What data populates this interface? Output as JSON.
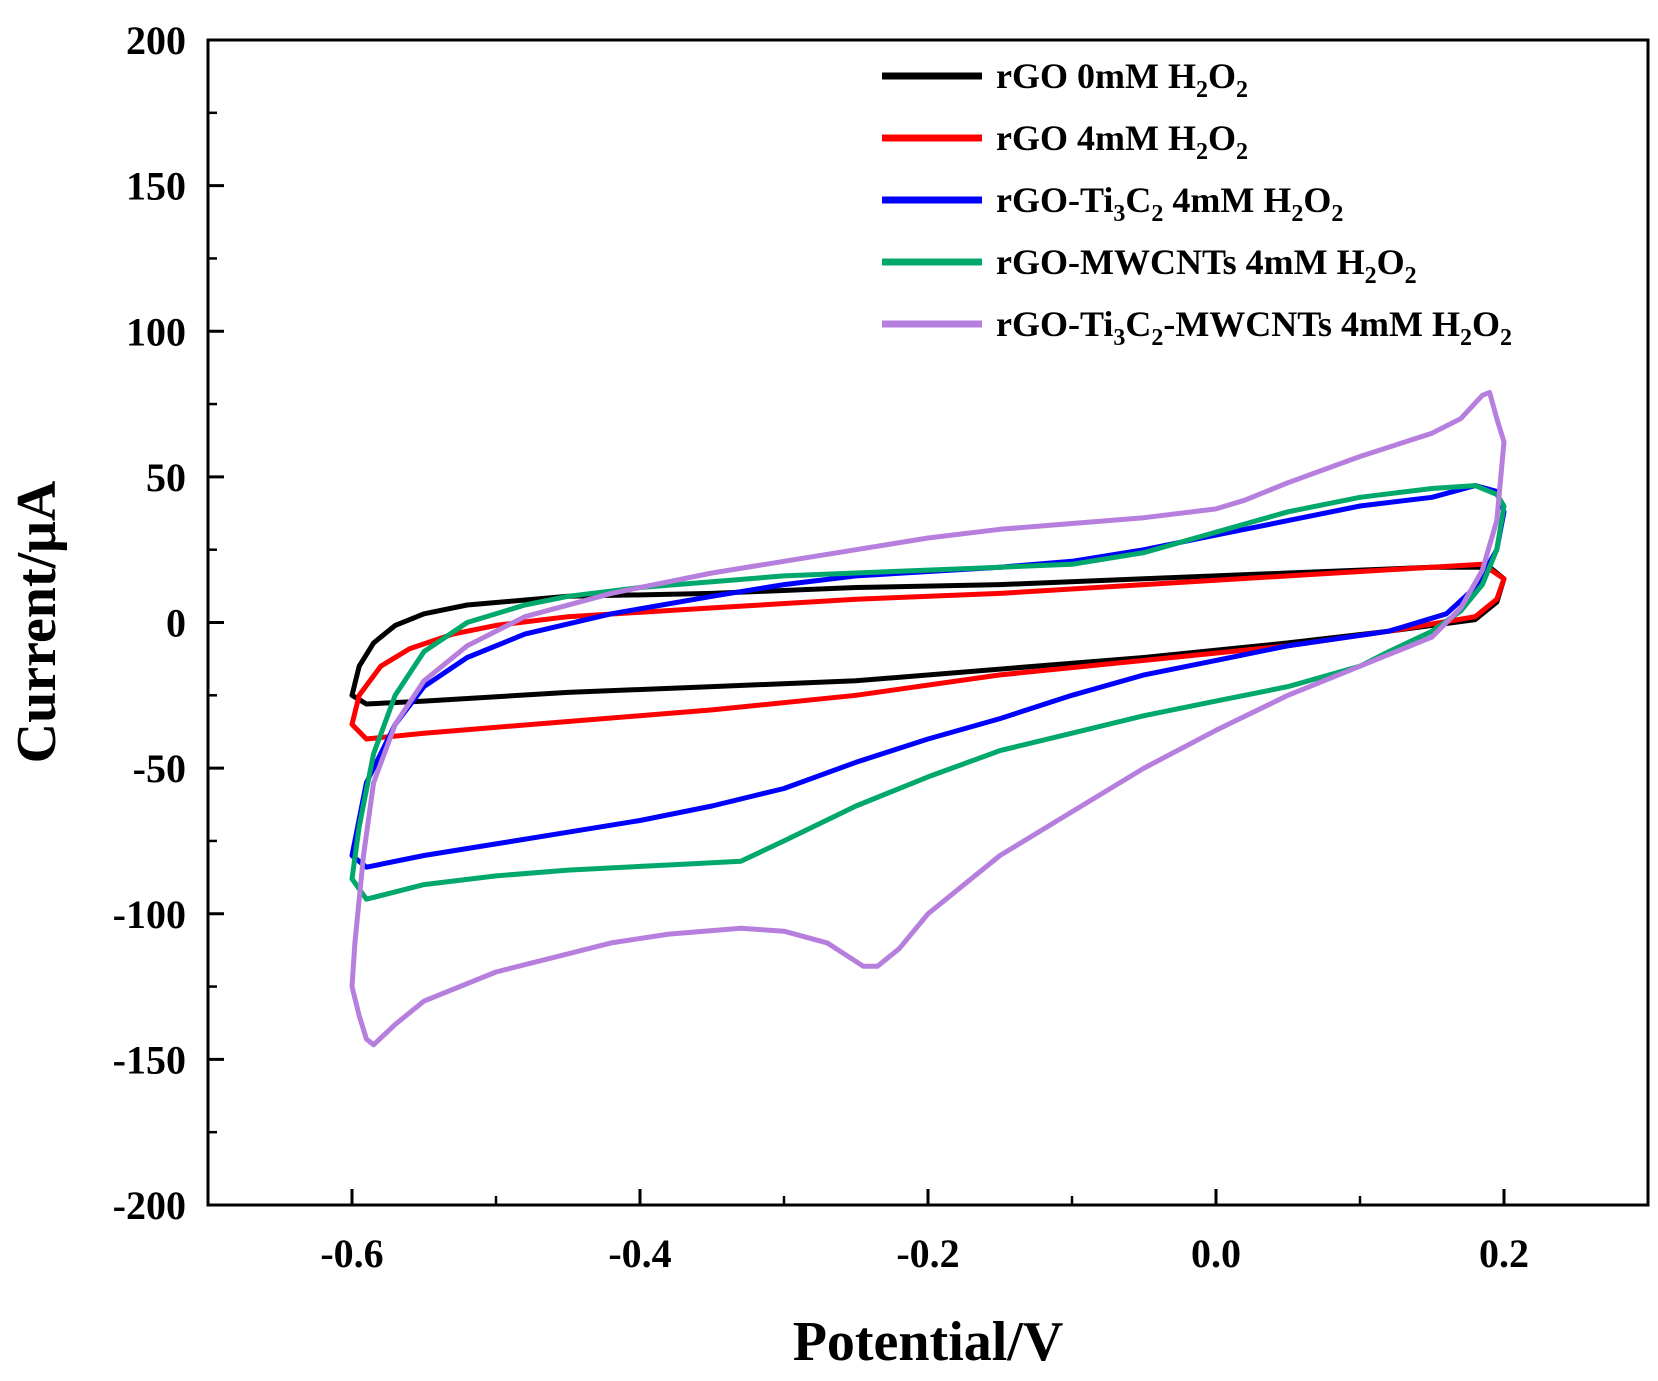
{
  "chart_data": {
    "type": "line",
    "title": "",
    "xlabel": "Potential/V",
    "ylabel": "Current/μA",
    "xlim": [
      -0.7,
      0.3
    ],
    "ylim": [
      -200,
      200
    ],
    "xticks": [
      "-0.6",
      "-0.4",
      "-0.2",
      "0.0",
      "0.2"
    ],
    "yticks": [
      "200",
      "150",
      "100",
      "50",
      "0",
      "-50",
      "-100",
      "-150",
      "-200"
    ],
    "legend_position": "top-right",
    "series": [
      {
        "name": "rGO 0mM H2O2",
        "legend": {
          "base": "rGO  0mM H",
          "parts": [
            [
              "2",
              "sub"
            ],
            [
              "O",
              ""
            ],
            [
              "2",
              "sub"
            ]
          ]
        },
        "color": "#000000",
        "points": [
          [
            -0.6,
            -25
          ],
          [
            -0.595,
            -15
          ],
          [
            -0.585,
            -7
          ],
          [
            -0.57,
            -1
          ],
          [
            -0.55,
            3
          ],
          [
            -0.52,
            6
          ],
          [
            -0.45,
            9
          ],
          [
            -0.35,
            10
          ],
          [
            -0.25,
            12
          ],
          [
            -0.15,
            13
          ],
          [
            -0.05,
            15
          ],
          [
            0.05,
            17
          ],
          [
            0.15,
            19
          ],
          [
            0.19,
            19
          ],
          [
            0.2,
            15
          ],
          [
            0.195,
            7
          ],
          [
            0.18,
            1
          ],
          [
            0.12,
            -3
          ],
          [
            0.05,
            -7
          ],
          [
            -0.05,
            -12
          ],
          [
            -0.15,
            -16
          ],
          [
            -0.25,
            -20
          ],
          [
            -0.35,
            -22
          ],
          [
            -0.45,
            -24
          ],
          [
            -0.55,
            -27
          ],
          [
            -0.59,
            -28
          ],
          [
            -0.6,
            -25
          ]
        ]
      },
      {
        "name": "rGO 4mM H2O2",
        "legend": {
          "base": "rGO  4mM H",
          "parts": [
            [
              "2",
              "sub"
            ],
            [
              "O",
              ""
            ],
            [
              "2",
              "sub"
            ]
          ]
        },
        "color": "#ff0000",
        "points": [
          [
            -0.6,
            -35
          ],
          [
            -0.595,
            -25
          ],
          [
            -0.58,
            -15
          ],
          [
            -0.56,
            -9
          ],
          [
            -0.53,
            -4
          ],
          [
            -0.5,
            -1
          ],
          [
            -0.45,
            2
          ],
          [
            -0.35,
            5
          ],
          [
            -0.25,
            8
          ],
          [
            -0.15,
            10
          ],
          [
            -0.05,
            13
          ],
          [
            0.05,
            16
          ],
          [
            0.15,
            19
          ],
          [
            0.185,
            20
          ],
          [
            0.2,
            15
          ],
          [
            0.195,
            8
          ],
          [
            0.18,
            2
          ],
          [
            0.12,
            -3
          ],
          [
            0.05,
            -8
          ],
          [
            -0.05,
            -13
          ],
          [
            -0.15,
            -18
          ],
          [
            -0.25,
            -25
          ],
          [
            -0.35,
            -30
          ],
          [
            -0.45,
            -34
          ],
          [
            -0.55,
            -38
          ],
          [
            -0.59,
            -40
          ],
          [
            -0.6,
            -35
          ]
        ]
      },
      {
        "name": "rGO-Ti3C2 4mM H2O2",
        "legend": {
          "base": "rGO-Ti",
          "parts": [
            [
              "3",
              "sub"
            ],
            [
              "C",
              ""
            ],
            [
              "2",
              "sub"
            ],
            [
              "  4mM H",
              ""
            ],
            [
              "2",
              "sub"
            ],
            [
              "O",
              ""
            ],
            [
              "2",
              "sub"
            ]
          ]
        },
        "color": "#0000ff",
        "points": [
          [
            -0.6,
            -80
          ],
          [
            -0.59,
            -55
          ],
          [
            -0.57,
            -35
          ],
          [
            -0.55,
            -22
          ],
          [
            -0.52,
            -12
          ],
          [
            -0.48,
            -4
          ],
          [
            -0.42,
            3
          ],
          [
            -0.35,
            9
          ],
          [
            -0.3,
            13
          ],
          [
            -0.25,
            16
          ],
          [
            -0.15,
            19
          ],
          [
            -0.1,
            21
          ],
          [
            -0.05,
            25
          ],
          [
            0.0,
            30
          ],
          [
            0.05,
            35
          ],
          [
            0.1,
            40
          ],
          [
            0.15,
            43
          ],
          [
            0.18,
            47
          ],
          [
            0.195,
            45
          ],
          [
            0.2,
            38
          ],
          [
            0.195,
            25
          ],
          [
            0.18,
            12
          ],
          [
            0.16,
            3
          ],
          [
            0.12,
            -3
          ],
          [
            0.05,
            -8
          ],
          [
            0.0,
            -13
          ],
          [
            -0.05,
            -18
          ],
          [
            -0.1,
            -25
          ],
          [
            -0.15,
            -33
          ],
          [
            -0.2,
            -40
          ],
          [
            -0.25,
            -48
          ],
          [
            -0.3,
            -57
          ],
          [
            -0.35,
            -63
          ],
          [
            -0.4,
            -68
          ],
          [
            -0.45,
            -72
          ],
          [
            -0.5,
            -76
          ],
          [
            -0.55,
            -80
          ],
          [
            -0.59,
            -84
          ],
          [
            -0.6,
            -80
          ]
        ]
      },
      {
        "name": "rGO-MWCNTs 4mM H2O2",
        "legend": {
          "base": "rGO-MWCNTs  4mM H",
          "parts": [
            [
              "2",
              "sub"
            ],
            [
              "O",
              ""
            ],
            [
              "2",
              "sub"
            ]
          ]
        },
        "color": "#00a86b",
        "points": [
          [
            -0.6,
            -88
          ],
          [
            -0.595,
            -70
          ],
          [
            -0.585,
            -45
          ],
          [
            -0.57,
            -25
          ],
          [
            -0.55,
            -10
          ],
          [
            -0.52,
            0
          ],
          [
            -0.48,
            6
          ],
          [
            -0.45,
            9
          ],
          [
            -0.4,
            12
          ],
          [
            -0.35,
            14
          ],
          [
            -0.3,
            16
          ],
          [
            -0.2,
            18
          ],
          [
            -0.15,
            19
          ],
          [
            -0.1,
            20
          ],
          [
            -0.05,
            24
          ],
          [
            0.0,
            31
          ],
          [
            0.05,
            38
          ],
          [
            0.1,
            43
          ],
          [
            0.15,
            46
          ],
          [
            0.18,
            47
          ],
          [
            0.195,
            44
          ],
          [
            0.2,
            40
          ],
          [
            0.195,
            25
          ],
          [
            0.185,
            13
          ],
          [
            0.17,
            4
          ],
          [
            0.15,
            -3
          ],
          [
            0.12,
            -10
          ],
          [
            0.1,
            -15
          ],
          [
            0.05,
            -22
          ],
          [
            0.0,
            -27
          ],
          [
            -0.05,
            -32
          ],
          [
            -0.1,
            -38
          ],
          [
            -0.15,
            -44
          ],
          [
            -0.2,
            -53
          ],
          [
            -0.25,
            -63
          ],
          [
            -0.3,
            -75
          ],
          [
            -0.33,
            -82
          ],
          [
            -0.37,
            -83
          ],
          [
            -0.45,
            -85
          ],
          [
            -0.5,
            -87
          ],
          [
            -0.55,
            -90
          ],
          [
            -0.59,
            -95
          ],
          [
            -0.6,
            -88
          ]
        ]
      },
      {
        "name": "rGO-Ti3C2-MWCNTs 4mM H2O2",
        "legend": {
          "base": "rGO-Ti",
          "parts": [
            [
              "3",
              "sub"
            ],
            [
              "C",
              ""
            ],
            [
              "2",
              "sub"
            ],
            [
              "-MWCNTs  4mM H",
              ""
            ],
            [
              "2",
              "sub"
            ],
            [
              "O",
              ""
            ],
            [
              "2",
              "sub"
            ]
          ]
        },
        "color": "#b77fdd",
        "points": [
          [
            -0.6,
            -125
          ],
          [
            -0.598,
            -110
          ],
          [
            -0.592,
            -80
          ],
          [
            -0.585,
            -55
          ],
          [
            -0.57,
            -35
          ],
          [
            -0.55,
            -20
          ],
          [
            -0.52,
            -8
          ],
          [
            -0.48,
            2
          ],
          [
            -0.42,
            10
          ],
          [
            -0.35,
            17
          ],
          [
            -0.3,
            21
          ],
          [
            -0.25,
            25
          ],
          [
            -0.2,
            29
          ],
          [
            -0.15,
            32
          ],
          [
            -0.1,
            34
          ],
          [
            -0.05,
            36
          ],
          [
            0.0,
            39
          ],
          [
            0.02,
            42
          ],
          [
            0.05,
            48
          ],
          [
            0.1,
            57
          ],
          [
            0.15,
            65
          ],
          [
            0.17,
            70
          ],
          [
            0.185,
            78
          ],
          [
            0.19,
            79
          ],
          [
            0.195,
            70
          ],
          [
            0.2,
            62
          ],
          [
            0.195,
            35
          ],
          [
            0.185,
            18
          ],
          [
            0.17,
            5
          ],
          [
            0.15,
            -5
          ],
          [
            0.1,
            -15
          ],
          [
            0.05,
            -25
          ],
          [
            0.0,
            -37
          ],
          [
            -0.05,
            -50
          ],
          [
            -0.1,
            -65
          ],
          [
            -0.15,
            -80
          ],
          [
            -0.2,
            -100
          ],
          [
            -0.22,
            -112
          ],
          [
            -0.235,
            -118
          ],
          [
            -0.245,
            -118
          ],
          [
            -0.27,
            -110
          ],
          [
            -0.3,
            -106
          ],
          [
            -0.33,
            -105
          ],
          [
            -0.38,
            -107
          ],
          [
            -0.42,
            -110
          ],
          [
            -0.5,
            -120
          ],
          [
            -0.55,
            -130
          ],
          [
            -0.57,
            -138
          ],
          [
            -0.585,
            -145
          ],
          [
            -0.59,
            -143
          ],
          [
            -0.595,
            -135
          ],
          [
            -0.6,
            -125
          ]
        ]
      }
    ]
  }
}
